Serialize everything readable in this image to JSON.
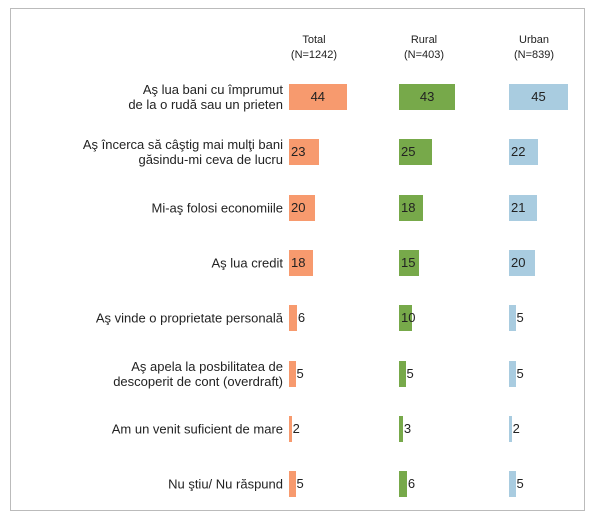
{
  "chart_data": {
    "type": "bar",
    "categories": [
      "Aş lua bani cu împrumut\nde la o rudă sau un prieten",
      "Aş încerca să câştig mai mulţi bani\ngăsindu-mi ceva de lucru",
      "Mi-aş folosi economiile",
      "Aş lua credit",
      "Aş vinde o proprietate personală",
      "Aş apela la posbilitatea de\ndescoperit de cont (overdraft)",
      "Am un venit suficient de mare",
      "Nu ştiu/ Nu răspund"
    ],
    "series": [
      {
        "name": "Total",
        "sample": "(N=1242)",
        "color": "#f79a6e",
        "values": [
          44,
          23,
          20,
          18,
          6,
          5,
          2,
          5
        ]
      },
      {
        "name": "Rural",
        "sample": "(N=403)",
        "color": "#77a94a",
        "values": [
          43,
          25,
          18,
          15,
          10,
          5,
          3,
          6
        ]
      },
      {
        "name": "Urban",
        "sample": "(N=839)",
        "color": "#a9cce0",
        "values": [
          45,
          22,
          21,
          20,
          5,
          5,
          2,
          5
        ]
      }
    ]
  }
}
